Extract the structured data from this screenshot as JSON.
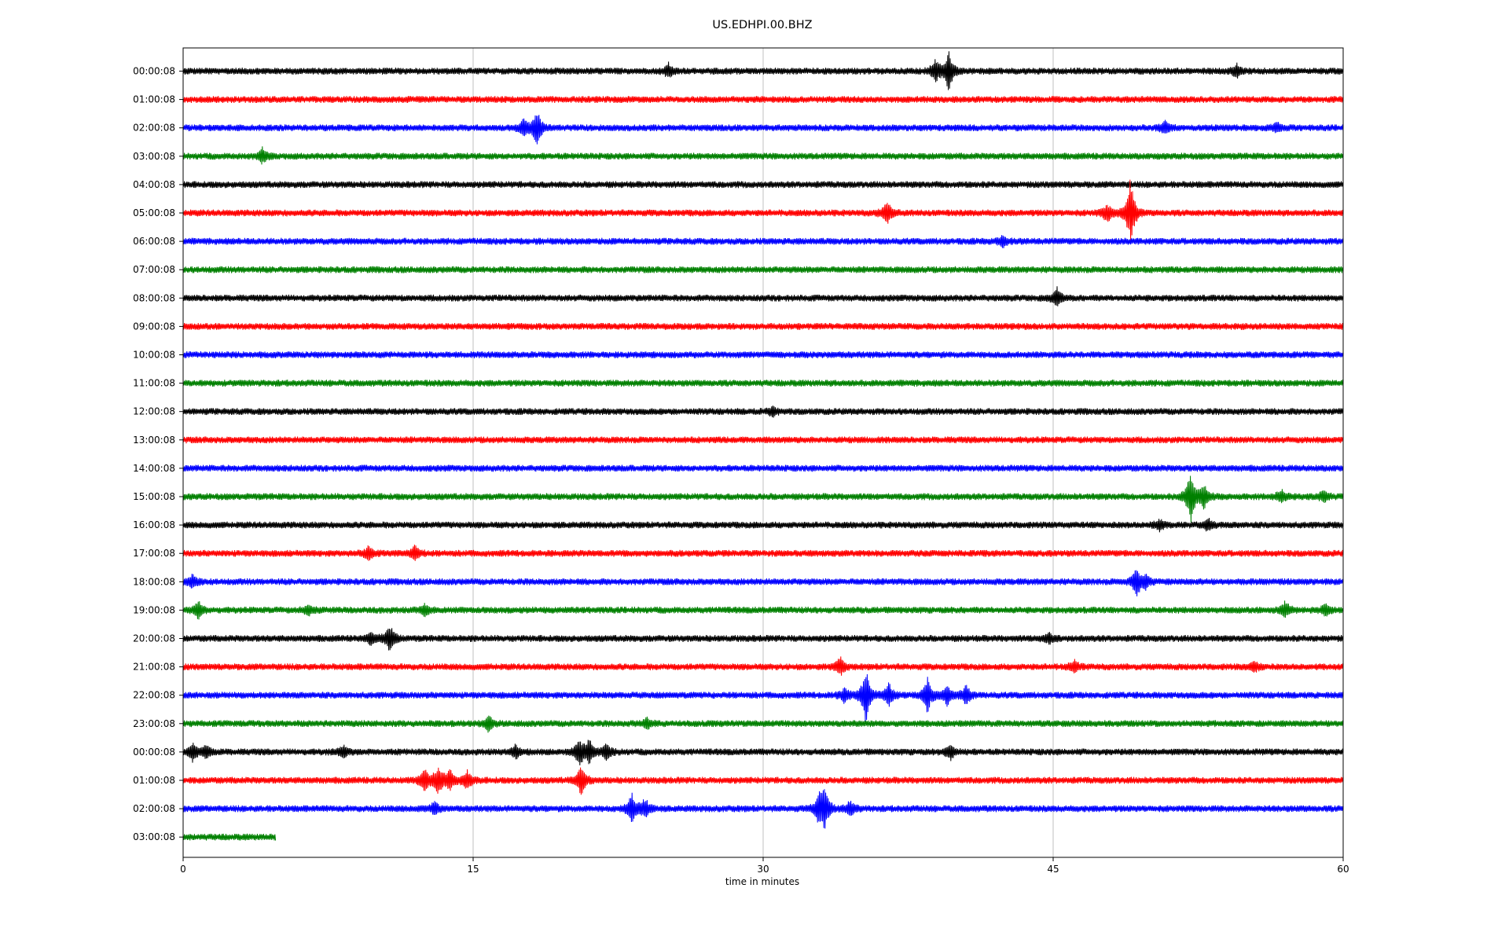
{
  "chart_data": {
    "type": "line",
    "title": "US.EDHPI.00.BHZ",
    "subtitle": "",
    "xlabel": "time in minutes",
    "ylabel": "",
    "xlim": [
      0,
      60
    ],
    "x_ticks": [
      "0",
      "15",
      "30",
      "45",
      "60"
    ],
    "grid": "vertical lines at 15, 30, 45",
    "legend": "none",
    "colors": [
      "#000000",
      "#ff0000",
      "#0000ff",
      "#008000"
    ],
    "series": [
      {
        "label": "00:00:08",
        "color": "#000000",
        "end_min": 60,
        "events": [
          {
            "t": 25.1,
            "amp": 0.35
          },
          {
            "t": 38.9,
            "amp": 0.55
          },
          {
            "t": 39.6,
            "amp": 1.0
          },
          {
            "t": 54.5,
            "amp": 0.3
          }
        ]
      },
      {
        "label": "01:00:08",
        "color": "#ff0000",
        "end_min": 60,
        "events": []
      },
      {
        "label": "02:00:08",
        "color": "#0000ff",
        "end_min": 60,
        "events": [
          {
            "t": 18.3,
            "amp": 1.0
          },
          {
            "t": 17.6,
            "amp": 0.4
          },
          {
            "t": 50.8,
            "amp": 0.3
          },
          {
            "t": 56.6,
            "amp": 0.2
          }
        ]
      },
      {
        "label": "03:00:08",
        "color": "#008000",
        "end_min": 60,
        "events": [
          {
            "t": 4.1,
            "amp": 0.35
          }
        ]
      },
      {
        "label": "04:00:08",
        "color": "#000000",
        "end_min": 60,
        "events": []
      },
      {
        "label": "05:00:08",
        "color": "#ff0000",
        "end_min": 60,
        "events": [
          {
            "t": 36.4,
            "amp": 0.6
          },
          {
            "t": 47.8,
            "amp": 0.5
          },
          {
            "t": 49.0,
            "amp": 1.8
          }
        ]
      },
      {
        "label": "06:00:08",
        "color": "#0000ff",
        "end_min": 60,
        "events": [
          {
            "t": 42.4,
            "amp": 0.25
          }
        ]
      },
      {
        "label": "07:00:08",
        "color": "#008000",
        "end_min": 60,
        "events": []
      },
      {
        "label": "08:00:08",
        "color": "#000000",
        "end_min": 60,
        "events": [
          {
            "t": 45.2,
            "amp": 0.45
          }
        ]
      },
      {
        "label": "09:00:08",
        "color": "#ff0000",
        "end_min": 60,
        "events": []
      },
      {
        "label": "10:00:08",
        "color": "#0000ff",
        "end_min": 60,
        "events": []
      },
      {
        "label": "11:00:08",
        "color": "#008000",
        "end_min": 60,
        "events": []
      },
      {
        "label": "12:00:08",
        "color": "#000000",
        "end_min": 60,
        "events": [
          {
            "t": 30.5,
            "amp": 0.2
          }
        ]
      },
      {
        "label": "13:00:08",
        "color": "#ff0000",
        "end_min": 60,
        "events": []
      },
      {
        "label": "14:00:08",
        "color": "#0000ff",
        "end_min": 60,
        "events": []
      },
      {
        "label": "15:00:08",
        "color": "#008000",
        "end_min": 60,
        "events": [
          {
            "t": 52.1,
            "amp": 1.4
          },
          {
            "t": 52.8,
            "amp": 0.6
          },
          {
            "t": 56.8,
            "amp": 0.3
          },
          {
            "t": 59.0,
            "amp": 0.3
          }
        ]
      },
      {
        "label": "16:00:08",
        "color": "#000000",
        "end_min": 60,
        "events": [
          {
            "t": 53.0,
            "amp": 0.3
          },
          {
            "t": 50.5,
            "amp": 0.25
          }
        ]
      },
      {
        "label": "17:00:08",
        "color": "#ff0000",
        "end_min": 60,
        "events": [
          {
            "t": 9.6,
            "amp": 0.35
          },
          {
            "t": 12.0,
            "amp": 0.35
          }
        ]
      },
      {
        "label": "18:00:08",
        "color": "#0000ff",
        "end_min": 60,
        "events": [
          {
            "t": 0.5,
            "amp": 0.35
          },
          {
            "t": 49.3,
            "amp": 0.8
          },
          {
            "t": 49.8,
            "amp": 0.3
          }
        ]
      },
      {
        "label": "19:00:08",
        "color": "#008000",
        "end_min": 60,
        "events": [
          {
            "t": 0.8,
            "amp": 0.4
          },
          {
            "t": 6.5,
            "amp": 0.25
          },
          {
            "t": 12.5,
            "amp": 0.3
          },
          {
            "t": 57.0,
            "amp": 0.4
          },
          {
            "t": 59.1,
            "amp": 0.3
          }
        ]
      },
      {
        "label": "20:00:08",
        "color": "#000000",
        "end_min": 60,
        "events": [
          {
            "t": 9.7,
            "amp": 0.3
          },
          {
            "t": 10.7,
            "amp": 0.7
          },
          {
            "t": 44.8,
            "amp": 0.25
          }
        ]
      },
      {
        "label": "21:00:08",
        "color": "#ff0000",
        "end_min": 60,
        "events": [
          {
            "t": 34.0,
            "amp": 0.45
          },
          {
            "t": 46.1,
            "amp": 0.3
          },
          {
            "t": 55.4,
            "amp": 0.25
          }
        ]
      },
      {
        "label": "22:00:08",
        "color": "#0000ff",
        "end_min": 60,
        "events": [
          {
            "t": 35.3,
            "amp": 1.5
          },
          {
            "t": 36.5,
            "amp": 0.6
          },
          {
            "t": 38.5,
            "amp": 0.9
          },
          {
            "t": 39.5,
            "amp": 0.5
          },
          {
            "t": 40.5,
            "amp": 0.5
          },
          {
            "t": 34.2,
            "amp": 0.35
          }
        ]
      },
      {
        "label": "23:00:08",
        "color": "#008000",
        "end_min": 60,
        "events": [
          {
            "t": 15.8,
            "amp": 0.35
          },
          {
            "t": 24.0,
            "amp": 0.25
          }
        ]
      },
      {
        "label": "00:00:08",
        "color": "#000000",
        "end_min": 60,
        "events": [
          {
            "t": 0.5,
            "amp": 0.4
          },
          {
            "t": 1.2,
            "amp": 0.3
          },
          {
            "t": 8.3,
            "amp": 0.3
          },
          {
            "t": 17.2,
            "amp": 0.35
          },
          {
            "t": 20.5,
            "amp": 0.7
          },
          {
            "t": 21.0,
            "amp": 0.6
          },
          {
            "t": 21.9,
            "amp": 0.4
          },
          {
            "t": 39.7,
            "amp": 0.4
          }
        ]
      },
      {
        "label": "01:00:08",
        "color": "#ff0000",
        "end_min": 60,
        "events": [
          {
            "t": 20.6,
            "amp": 0.8
          },
          {
            "t": 12.5,
            "amp": 0.6
          },
          {
            "t": 13.2,
            "amp": 0.7
          },
          {
            "t": 13.8,
            "amp": 0.5
          },
          {
            "t": 14.7,
            "amp": 0.5
          }
        ]
      },
      {
        "label": "02:00:08",
        "color": "#0000ff",
        "end_min": 60,
        "events": [
          {
            "t": 13.0,
            "amp": 0.3
          },
          {
            "t": 23.2,
            "amp": 0.8
          },
          {
            "t": 23.9,
            "amp": 0.5
          },
          {
            "t": 32.9,
            "amp": 0.7
          },
          {
            "t": 33.2,
            "amp": 1.0
          },
          {
            "t": 34.5,
            "amp": 0.4
          }
        ]
      },
      {
        "label": "03:00:08",
        "color": "#008000",
        "end_min": 4.8,
        "events": []
      }
    ]
  }
}
